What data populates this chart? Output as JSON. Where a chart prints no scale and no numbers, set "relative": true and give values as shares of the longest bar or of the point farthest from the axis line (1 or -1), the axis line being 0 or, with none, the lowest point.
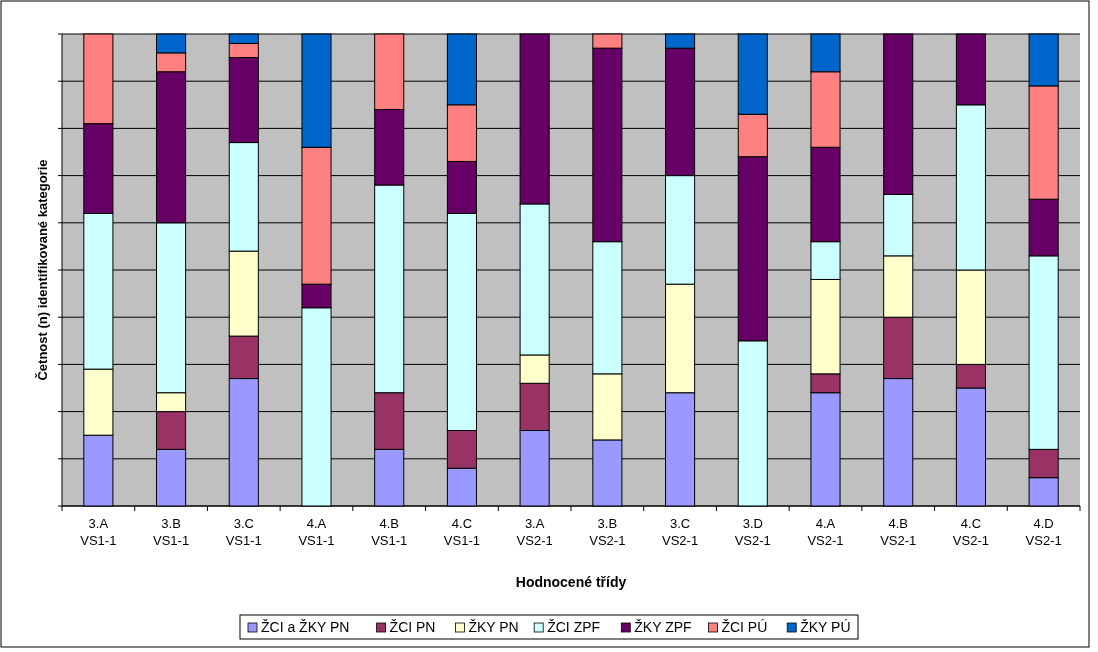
{
  "chart_data": {
    "type": "bar",
    "stacked": true,
    "relative": true,
    "grid": "y",
    "legend": "bottom",
    "xlabel": "Hodnocené třídy",
    "ylabel": "Četnost (n) identifikované kategorie",
    "categories": [
      "3.A VS1-1",
      "3.B VS1-1",
      "3.C VS1-1",
      "4.A VS1-1",
      "4.B VS1-1",
      "4.C VS1-1",
      "3.A VS2-1",
      "3.B VS2-1",
      "3.C VS2-1",
      "3.D VS2-1",
      "4.A VS2-1",
      "4.B VS2-1",
      "4.C VS2-1",
      "4.D VS2-1"
    ],
    "series": [
      {
        "name": "ŽCI a ŽKY PN",
        "color": "#9999ff",
        "values": [
          0.15,
          0.12,
          0.27,
          0,
          0.12,
          0.08,
          0.16,
          0.14,
          0.24,
          0,
          0.24,
          0.27,
          0.25,
          0.06
        ]
      },
      {
        "name": "ŽCI PN",
        "color": "#993366",
        "values": [
          0,
          0.08,
          0.09,
          0,
          0.12,
          0.08,
          0.1,
          0,
          0,
          0,
          0.04,
          0.13,
          0.05,
          0.06
        ]
      },
      {
        "name": "ŽKY PN",
        "color": "#ffffcc",
        "values": [
          0.14,
          0.04,
          0.18,
          0,
          0,
          0,
          0.06,
          0.14,
          0.23,
          0,
          0.2,
          0.13,
          0.2,
          0
        ]
      },
      {
        "name": "ŽCI ZPF",
        "color": "#ccffff",
        "values": [
          0.33,
          0.36,
          0.23,
          0.42,
          0.44,
          0.46,
          0.32,
          0.28,
          0.23,
          0.35,
          0.08,
          0.13,
          0.35,
          0.41
        ]
      },
      {
        "name": "ŽKY ZPF",
        "color": "#660066",
        "values": [
          0.19,
          0.32,
          0.18,
          0.05,
          0.16,
          0.11,
          0.36,
          0.41,
          0.27,
          0.39,
          0.2,
          0.34,
          0.15,
          0.12
        ]
      },
      {
        "name": "ŽCI PÚ",
        "color": "#ff8080",
        "values": [
          0.19,
          0.04,
          0.03,
          0.29,
          0.16,
          0.12,
          0,
          0.03,
          0,
          0.09,
          0.16,
          0,
          0,
          0.24
        ]
      },
      {
        "name": "ŽKY PÚ",
        "color": "#0066cc",
        "values": [
          0,
          0.04,
          0.02,
          0.24,
          0,
          0.15,
          0,
          0,
          0.03,
          0.17,
          0.08,
          0,
          0,
          0.11
        ]
      }
    ]
  }
}
